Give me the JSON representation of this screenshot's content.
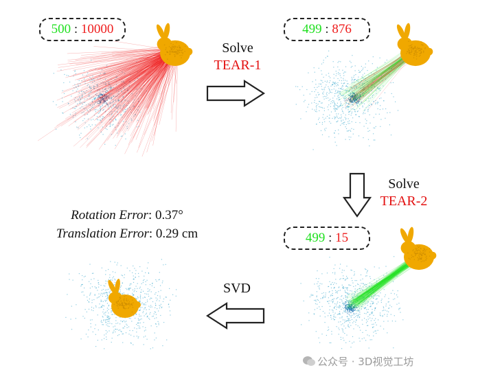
{
  "panels": {
    "p1": {
      "inliers": "500",
      "sep": ":",
      "total": "10000"
    },
    "p2": {
      "inliers": "499",
      "sep": ":",
      "total": "876"
    },
    "p3": {
      "inliers": "499",
      "sep": ":",
      "total": "15"
    }
  },
  "steps": {
    "s1": {
      "verb": "Solve",
      "method": "TEAR-1"
    },
    "s2": {
      "verb": "Solve",
      "method": "TEAR-2"
    },
    "s3": {
      "verb": "SVD"
    }
  },
  "metrics": {
    "rotation_label": "Rotation Error",
    "rotation_value": ": 0.37°",
    "translation_label": "Translation Error",
    "translation_value": ": 0.29 cm"
  },
  "watermark": "公众号 · 3D视觉工坊",
  "colors": {
    "inlier": "#1fe01f",
    "outlier": "#ee1c1c",
    "cloud_blue": "#2aa0c8",
    "bunny": "#f0a800"
  }
}
